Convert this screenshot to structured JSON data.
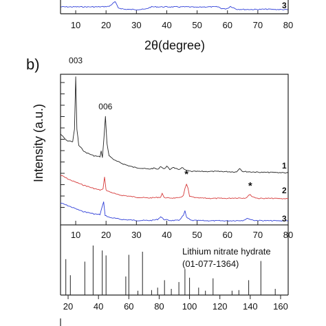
{
  "chart_data": [
    {
      "type": "line",
      "panel_label": "",
      "xlabel": "2θ(degree)",
      "ylabel": "",
      "xlim": [
        5,
        80
      ],
      "x_ticks": [
        10,
        20,
        30,
        40,
        50,
        60,
        70,
        80
      ],
      "series": [
        {
          "name": "3",
          "color": "#2f3fd8",
          "x": [
            5,
            12,
            18,
            21,
            23,
            24,
            26,
            28,
            31,
            33,
            34,
            35,
            37,
            40,
            44,
            47,
            50,
            52,
            54,
            57,
            58,
            59,
            60,
            61,
            63,
            66,
            70,
            73,
            76,
            80
          ],
          "y": [
            8,
            8,
            8,
            9,
            18,
            6,
            3.5,
            3,
            3,
            3.5,
            6,
            8,
            8,
            8,
            8,
            8,
            7,
            8,
            8,
            8,
            5,
            4,
            5,
            9,
            3.5,
            3,
            3,
            3.5,
            3,
            2.5
          ]
        }
      ]
    },
    {
      "type": "line",
      "panel_label": "b)",
      "xlabel": "",
      "ylabel": "Intensity (a.u.)",
      "xlim": [
        5,
        80
      ],
      "x_ticks": [
        10,
        20,
        30,
        40,
        50,
        60,
        70,
        80
      ],
      "peak_labels": [
        {
          "text": "003",
          "x": 10
        },
        {
          "text": "006",
          "x": 19.8
        }
      ],
      "markers": [
        {
          "text": "*",
          "x": 46.5,
          "series": "2"
        },
        {
          "text": "*",
          "x": 67.5,
          "series": "2"
        }
      ],
      "series": [
        {
          "name": "1",
          "color": "#222222",
          "x": [
            5,
            7,
            9,
            9.6,
            10,
            10.4,
            11,
            13,
            16,
            18,
            18.4,
            18.8,
            19.3,
            19.8,
            20.3,
            21,
            23,
            26,
            29,
            34,
            36,
            37,
            38,
            39,
            40,
            41,
            42,
            44,
            45,
            46,
            48,
            52,
            58,
            63,
            64,
            65,
            68,
            72,
            76,
            80
          ],
          "y": [
            40,
            33,
            32,
            45,
            100,
            45,
            28,
            21,
            17,
            16,
            22,
            15,
            35,
            59,
            30,
            17,
            12,
            8,
            5,
            3,
            4,
            2.5,
            6,
            3,
            6,
            2.5,
            5,
            2,
            5,
            2,
            0.5,
            0.5,
            0.5,
            0,
            4,
            0.5,
            0,
            -0.5,
            -0.5,
            -1
          ]
        },
        {
          "name": "2",
          "color": "#d63a3a",
          "x": [
            5,
            8,
            12,
            16,
            18,
            19,
            19.5,
            20,
            21,
            24,
            30,
            34,
            38,
            38.5,
            39,
            40,
            44,
            45.5,
            46,
            46.5,
            47,
            47.5,
            50,
            55,
            60,
            62,
            66,
            67,
            67.5,
            68,
            70,
            75,
            80
          ],
          "y": [
            30,
            24,
            18,
            13,
            11,
            12,
            28,
            11,
            9,
            5,
            2,
            1,
            2,
            7,
            2,
            1,
            1,
            4,
            13,
            18,
            13,
            3,
            1,
            0.5,
            0.5,
            1,
            1,
            4,
            6,
            3,
            0.5,
            0.5,
            0
          ]
        },
        {
          "name": "3",
          "color": "#2f3fd8",
          "x": [
            5,
            8,
            12,
            16,
            18,
            18.7,
            19.2,
            19.7,
            21,
            25,
            30,
            35,
            37,
            38,
            39,
            41,
            44,
            45.5,
            46,
            46.5,
            48,
            55,
            60,
            65,
            66.5,
            67,
            67.5,
            69,
            75,
            80
          ],
          "y": [
            26,
            21,
            14,
            10,
            9,
            20,
            27,
            8,
            5,
            2,
            0.5,
            0.5,
            2,
            6,
            2,
            0.5,
            0.5,
            8,
            14,
            5,
            0.5,
            0,
            0,
            0.5,
            3,
            3.5,
            2,
            0.5,
            0,
            0
          ]
        }
      ]
    },
    {
      "type": "bar",
      "label": "Lithium nitrate hydrate",
      "reference": "(01-077-1364)",
      "xlim": [
        15,
        165
      ],
      "x_ticks": [
        20,
        40,
        60,
        80,
        100,
        120,
        140,
        160
      ],
      "x": [
        18.5,
        21.5,
        31,
        36.5,
        42.5,
        45,
        58,
        60,
        66,
        69,
        75,
        79,
        83.5,
        88,
        93,
        97,
        100,
        106,
        110.5,
        115.5,
        128,
        132.5,
        139,
        147,
        156.5
      ],
      "values": [
        58,
        32,
        54,
        80,
        72,
        64,
        30,
        65,
        7,
        70,
        8,
        12,
        24,
        10,
        21,
        42,
        28,
        12,
        7,
        27,
        7,
        8,
        24,
        55,
        10
      ]
    }
  ]
}
